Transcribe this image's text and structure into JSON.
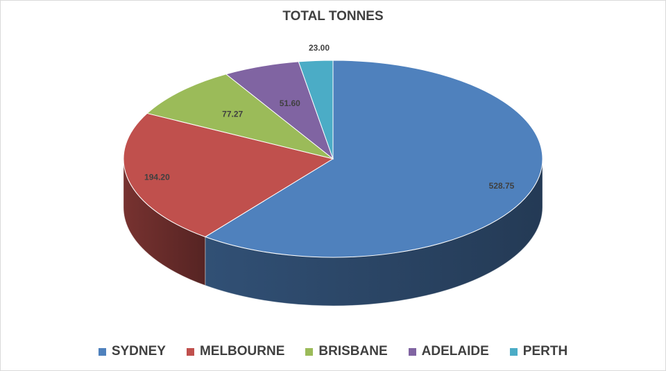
{
  "chart_data": {
    "type": "pie",
    "title": "TOTAL TONNES",
    "categories": [
      "SYDNEY",
      "MELBOURNE",
      "BRISBANE",
      "ADELAIDE",
      "PERTH"
    ],
    "values": [
      528.75,
      194.2,
      77.27,
      51.6,
      23.0
    ],
    "value_labels": [
      "528.75",
      "194.20",
      "77.27",
      "51.60",
      "23.00"
    ],
    "colors": [
      "#4f81bd",
      "#c0504d",
      "#9bbb59",
      "#8064a2",
      "#4bacc6"
    ],
    "style": "3d",
    "legend_position": "bottom"
  }
}
